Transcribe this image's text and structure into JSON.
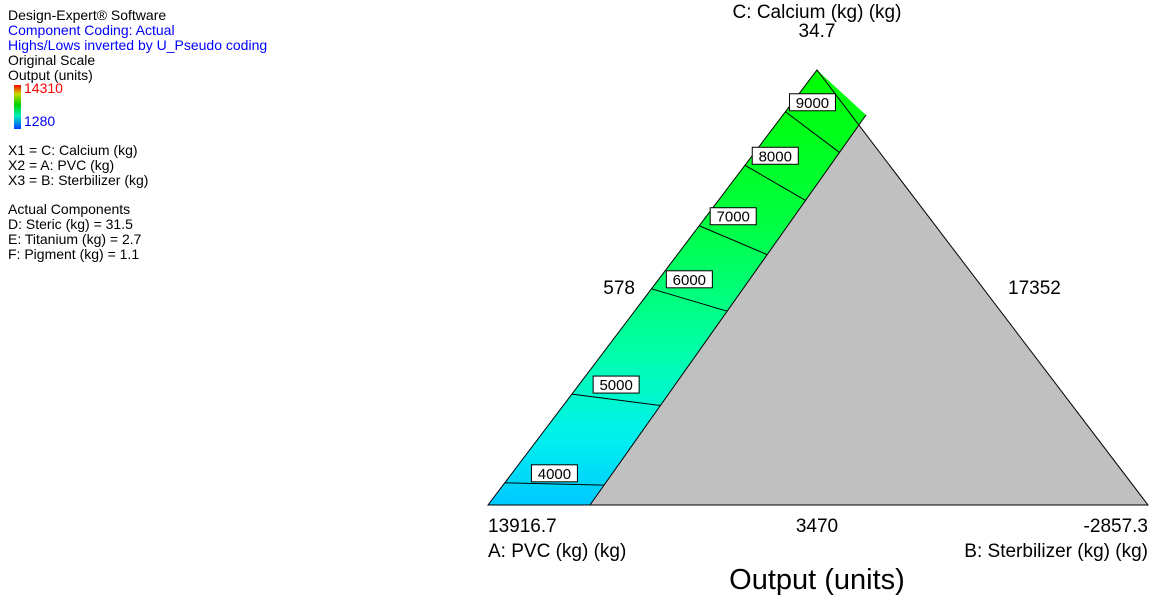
{
  "legend": {
    "software": "Design-Expert® Software",
    "coding": "Component Coding: Actual",
    "inverted_note": "Highs/Lows inverted by U_Pseudo coding",
    "scale": "Original Scale",
    "response": "Output (units)",
    "colorbar": {
      "high": "14310",
      "low": "1280",
      "high_color": "#ff0000",
      "low_color": "#0000ff"
    },
    "factors": [
      "X1 = C: Calcium (kg)",
      "X2 = A: PVC (kg)",
      "X3 = B: Sterbilizer (kg)"
    ],
    "actual_components_title": "Actual Components",
    "actual_components": [
      "D: Steric (kg) = 31.5",
      "E: Titanium (kg) = 2.7",
      "F: Pigment (kg) = 1.1"
    ]
  },
  "chart_data": {
    "type": "ternary-contour",
    "title": "Output (units)",
    "vertices": {
      "top": {
        "label": "C: Calcium (kg) (kg)",
        "value": "34.7"
      },
      "bottom_left": {
        "label": "A: PVC (kg) (kg)",
        "value": "13916.7"
      },
      "bottom_right": {
        "label": "B: Sterbilizer (kg) (kg)",
        "value": "-2857.3"
      }
    },
    "edge_values": {
      "left": "578",
      "right": "17352",
      "bottom": "3470"
    },
    "contours": [
      {
        "level": "4000",
        "t": 0.051
      },
      {
        "level": "5000",
        "t": 0.255
      },
      {
        "level": "6000",
        "t": 0.497
      },
      {
        "level": "7000",
        "t": 0.642
      },
      {
        "level": "8000",
        "t": 0.781
      },
      {
        "level": "9000",
        "t": 0.904
      }
    ],
    "feasible_region_boundary": "band along the A–C edge; remainder of simplex infeasible (gray)",
    "colors": {
      "infeasible": "#c0c0c0",
      "high": "#00ff00",
      "low": "#00c8ff"
    }
  }
}
